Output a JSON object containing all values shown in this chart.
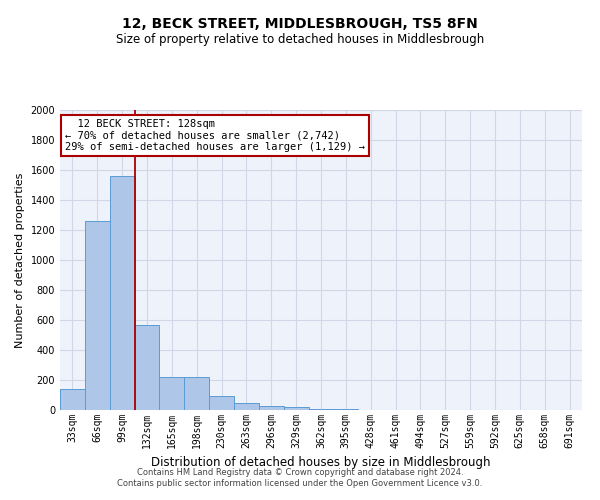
{
  "title": "12, BECK STREET, MIDDLESBROUGH, TS5 8FN",
  "subtitle": "Size of property relative to detached houses in Middlesbrough",
  "xlabel": "Distribution of detached houses by size in Middlesbrough",
  "ylabel": "Number of detached properties",
  "footer_line1": "Contains HM Land Registry data © Crown copyright and database right 2024.",
  "footer_line2": "Contains public sector information licensed under the Open Government Licence v3.0.",
  "annotation_title": "12 BECK STREET: 128sqm",
  "annotation_line1": "← 70% of detached houses are smaller (2,742)",
  "annotation_line2": "29% of semi-detached houses are larger (1,129) →",
  "bar_labels": [
    "33sqm",
    "66sqm",
    "99sqm",
    "132sqm",
    "165sqm",
    "198sqm",
    "230sqm",
    "263sqm",
    "296sqm",
    "329sqm",
    "362sqm",
    "395sqm",
    "428sqm",
    "461sqm",
    "494sqm",
    "527sqm",
    "559sqm",
    "592sqm",
    "625sqm",
    "658sqm",
    "691sqm"
  ],
  "bar_values": [
    140,
    1260,
    1560,
    570,
    220,
    220,
    95,
    50,
    28,
    20,
    10,
    5,
    2,
    1,
    0,
    0,
    0,
    0,
    0,
    0,
    0
  ],
  "bar_color": "#aec6e8",
  "bar_edge_color": "#5b9bd5",
  "grid_color": "#d0d8e8",
  "background_color": "#eef2fa",
  "vline_color": "#aa0000",
  "annotation_box_color": "#aa0000",
  "ylim": [
    0,
    2000
  ],
  "yticks": [
    0,
    200,
    400,
    600,
    800,
    1000,
    1200,
    1400,
    1600,
    1800,
    2000
  ],
  "title_fontsize": 10,
  "subtitle_fontsize": 8.5,
  "ylabel_fontsize": 8,
  "xlabel_fontsize": 8.5,
  "tick_fontsize": 7,
  "footer_fontsize": 6,
  "annotation_fontsize": 7.5
}
